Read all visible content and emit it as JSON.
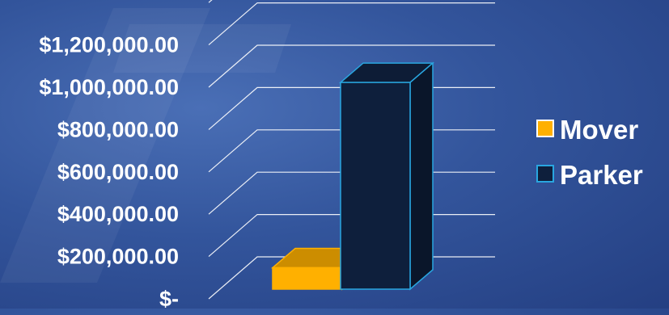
{
  "chart_data": {
    "type": "bar",
    "style": "3d-column",
    "categories": [
      "Mover",
      "Parker"
    ],
    "values": [
      110000,
      1060000
    ],
    "colors": [
      "#ffb000",
      "#0e1f3c"
    ],
    "edge_colors": [
      "#ffb000",
      "#29a6e0"
    ],
    "yticks": [
      "$-",
      "$200,000.00",
      "$400,000.00",
      "$600,000.00",
      "$800,000.00",
      "$1,000,000.00",
      "$1,200,000.00",
      ""
    ],
    "ylim": [
      0,
      1400000
    ],
    "grid": true,
    "legend": {
      "placement": "right",
      "entries": [
        {
          "label": "Mover",
          "color": "#ffb000"
        },
        {
          "label": "Parker",
          "color": "#0e1f3c",
          "edge": "#29a6e0"
        }
      ]
    }
  }
}
